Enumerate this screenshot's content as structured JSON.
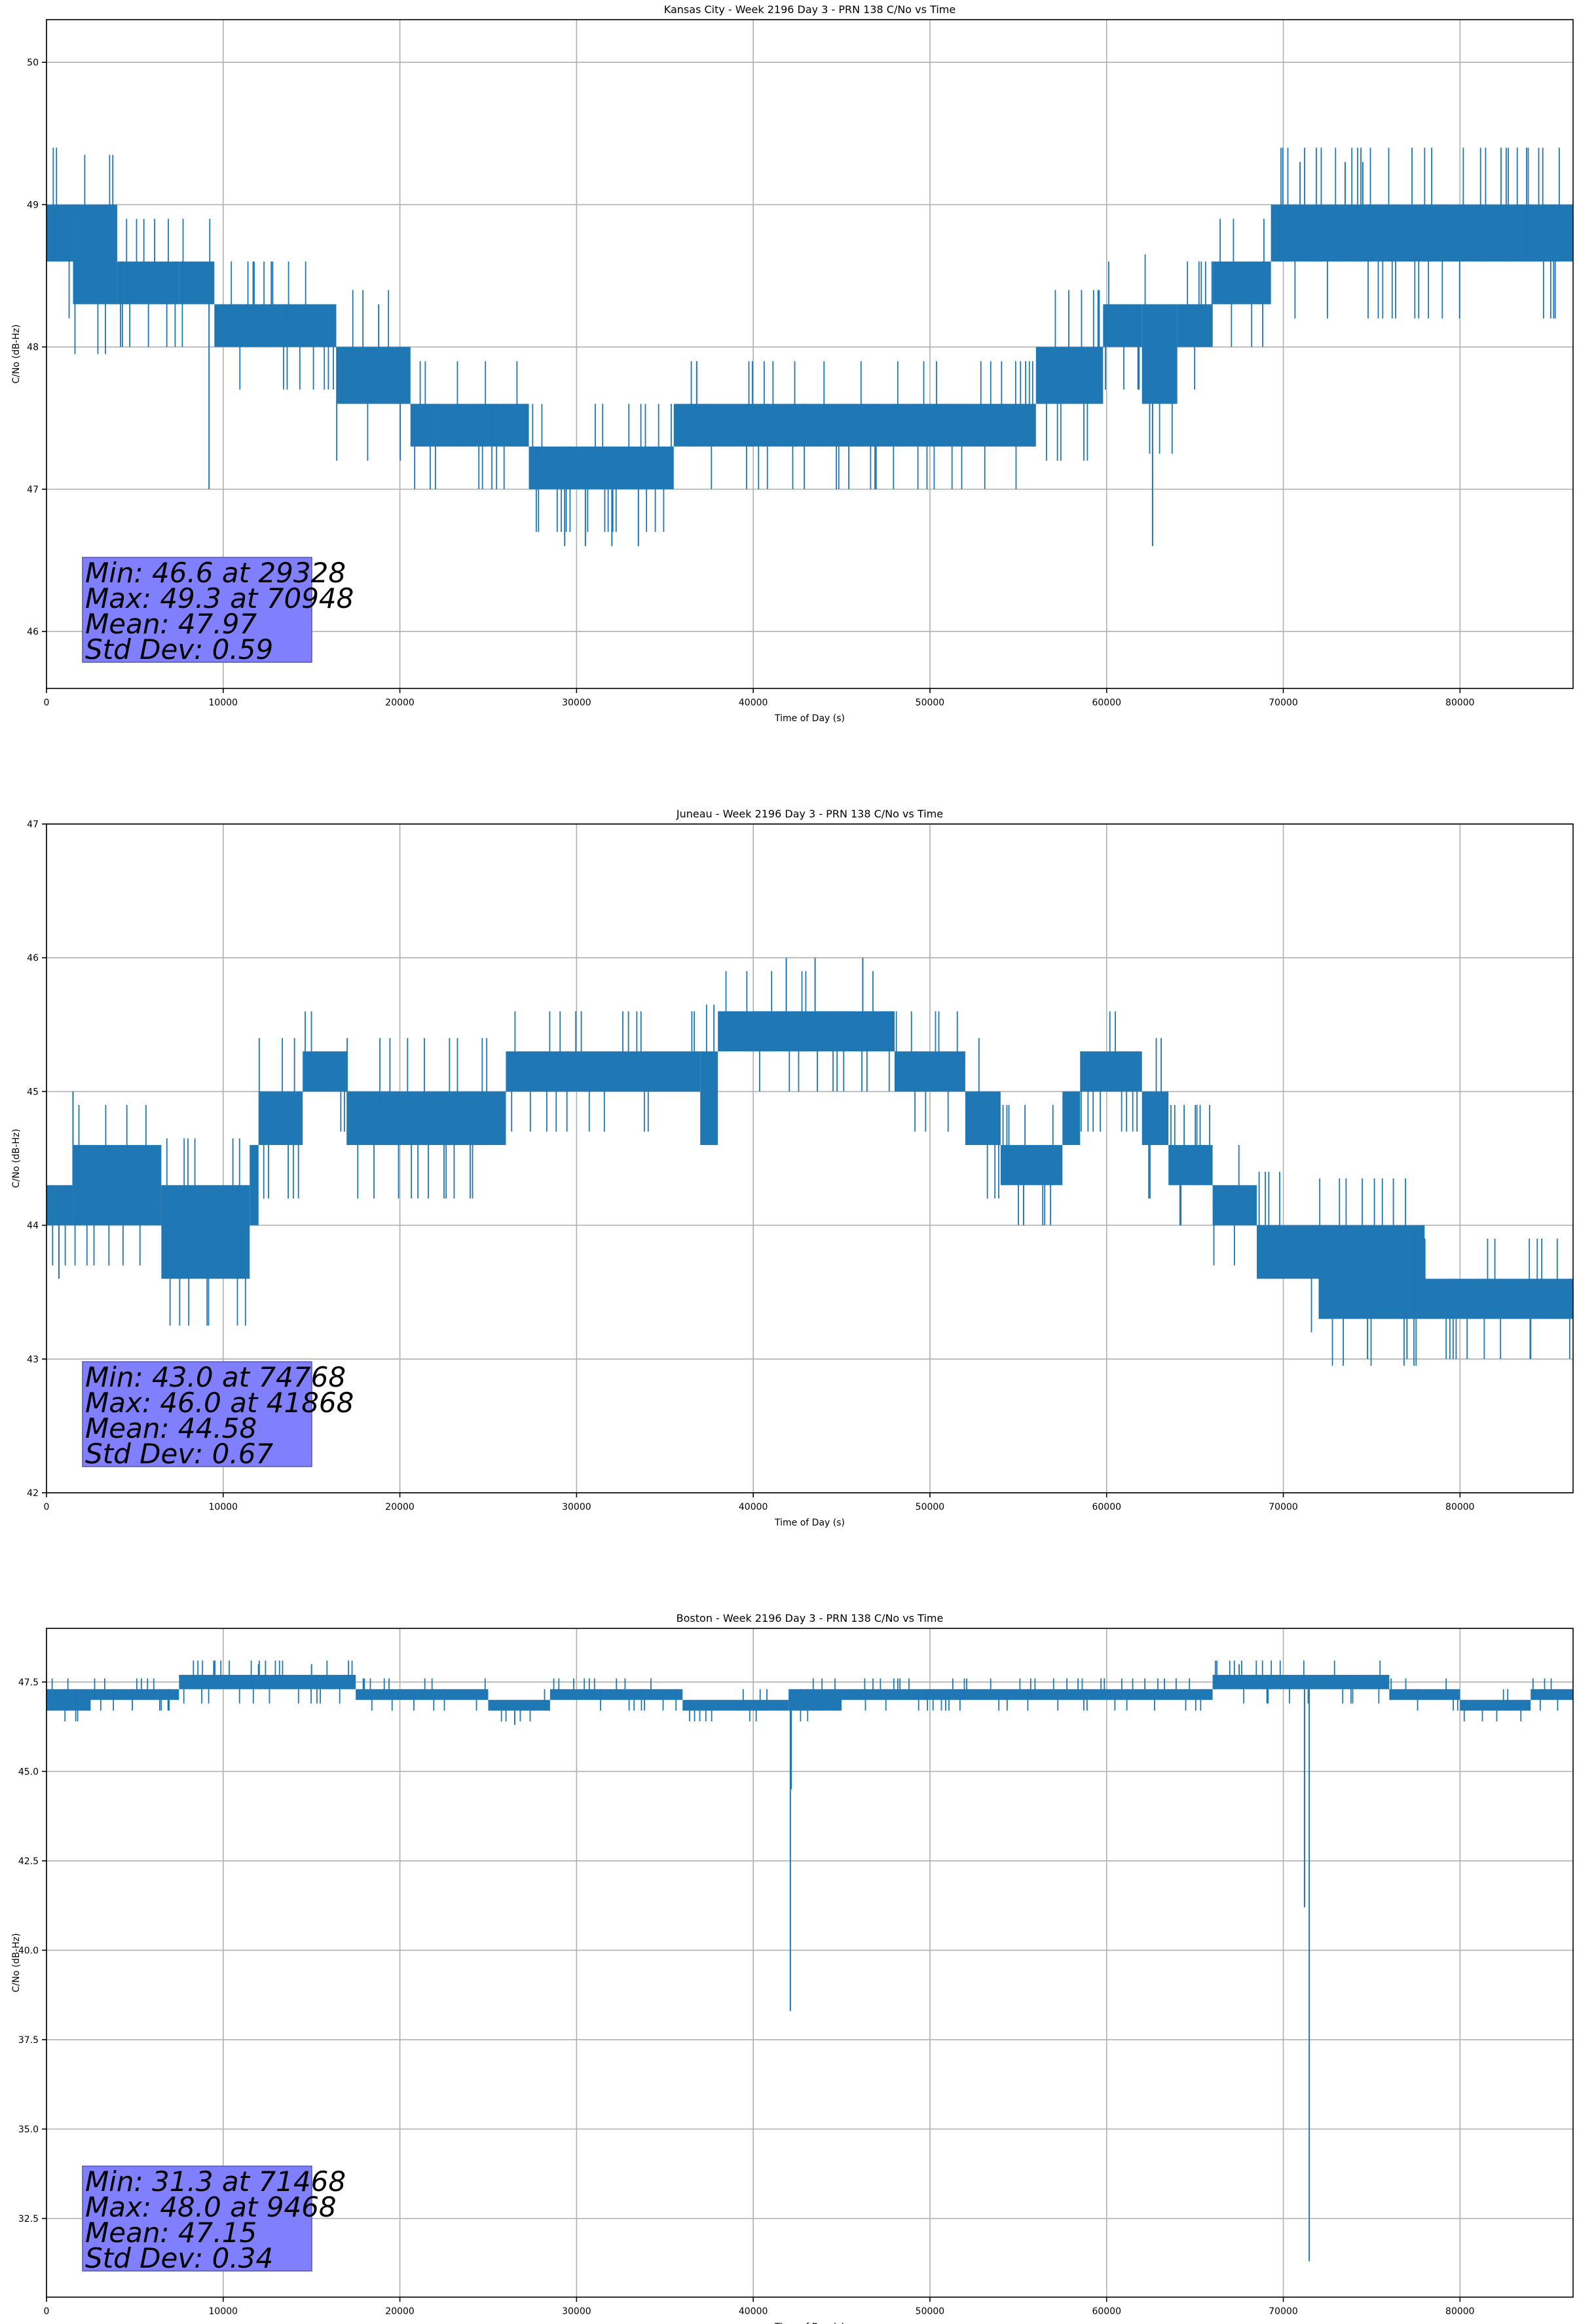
{
  "colors": {
    "line": "#1f77b4",
    "grid": "#b0b0b0",
    "statbox": "#8080ff",
    "statbox_edge": "#5555aa"
  },
  "chart_data": [
    {
      "type": "line",
      "title": "Kansas City - Week 2196 Day 3 - PRN 138 C/No vs Time",
      "xlabel": "Time of Day (s)",
      "ylabel": "C/No (dB-Hz)",
      "xlim": [
        0,
        86400
      ],
      "ylim": [
        45.6,
        50.3
      ],
      "xticks": [
        0,
        10000,
        20000,
        30000,
        40000,
        50000,
        60000,
        70000,
        80000
      ],
      "xtick_labels": [
        "0",
        "10000",
        "20000",
        "30000",
        "40000",
        "50000",
        "60000",
        "70000",
        "80000"
      ],
      "yticks": [
        46,
        47,
        48,
        49,
        50
      ],
      "ytick_labels": [
        "46",
        "47",
        "48",
        "49",
        "50"
      ],
      "grid": true,
      "series": [
        {
          "name": "C/No",
          "segments": [
            {
              "x0": 0,
              "x1": 1500,
              "lo": 48.6,
              "hi": 49.0
            },
            {
              "x0": 1500,
              "x1": 4000,
              "lo": 48.3,
              "hi": 49.0
            },
            {
              "x0": 4000,
              "x1": 7500,
              "lo": 48.3,
              "hi": 48.6
            },
            {
              "x0": 7500,
              "x1": 9500,
              "lo": 48.3,
              "hi": 48.6
            },
            {
              "x0": 9500,
              "x1": 16400,
              "lo": 48.0,
              "hi": 48.3
            },
            {
              "x0": 16400,
              "x1": 20600,
              "lo": 47.6,
              "hi": 48.0
            },
            {
              "x0": 20600,
              "x1": 27300,
              "lo": 47.3,
              "hi": 47.6
            },
            {
              "x0": 27300,
              "x1": 35500,
              "lo": 47.0,
              "hi": 47.3
            },
            {
              "x0": 35500,
              "x1": 56000,
              "lo": 47.3,
              "hi": 47.6
            },
            {
              "x0": 56000,
              "x1": 59800,
              "lo": 47.6,
              "hi": 48.0
            },
            {
              "x0": 59800,
              "x1": 62000,
              "lo": 48.0,
              "hi": 48.3
            },
            {
              "x0": 62000,
              "x1": 64000,
              "lo": 47.6,
              "hi": 48.3
            },
            {
              "x0": 64000,
              "x1": 66000,
              "lo": 48.0,
              "hi": 48.3
            },
            {
              "x0": 66000,
              "x1": 69300,
              "lo": 48.3,
              "hi": 48.6
            },
            {
              "x0": 69300,
              "x1": 86400,
              "lo": 48.6,
              "hi": 49.0
            }
          ],
          "spikes": [
            [
              9200,
              47.0
            ],
            [
              29328,
              46.6
            ],
            [
              30500,
              46.6
            ],
            [
              32000,
              46.6
            ],
            [
              33500,
              46.6
            ],
            [
              62600,
              46.6
            ],
            [
              70948,
              49.3
            ],
            [
              73500,
              49.3
            ],
            [
              74500,
              49.3
            ],
            [
              18800,
              48.3
            ],
            [
              12800,
              48.6
            ],
            [
              36800,
              47.9
            ]
          ]
        }
      ],
      "stats": [
        "Min: 46.6 at 29328",
        "Max: 49.3 at 70948",
        "Mean: 47.97",
        "Std Dev: 0.59"
      ]
    },
    {
      "type": "line",
      "title": "Juneau - Week 2196 Day 3 - PRN 138 C/No vs Time",
      "xlabel": "Time of Day (s)",
      "ylabel": "C/No (dB-Hz)",
      "xlim": [
        0,
        86400
      ],
      "ylim": [
        42,
        47
      ],
      "xticks": [
        0,
        10000,
        20000,
        30000,
        40000,
        50000,
        60000,
        70000,
        80000
      ],
      "xtick_labels": [
        "0",
        "10000",
        "20000",
        "30000",
        "40000",
        "50000",
        "60000",
        "70000",
        "80000"
      ],
      "yticks": [
        42,
        43,
        44,
        45,
        46,
        47
      ],
      "ytick_labels": [
        "42",
        "43",
        "44",
        "45",
        "46",
        "47"
      ],
      "grid": true,
      "series": [
        {
          "name": "C/No",
          "segments": [
            {
              "x0": 0,
              "x1": 1500,
              "lo": 44.0,
              "hi": 44.3
            },
            {
              "x0": 1500,
              "x1": 6500,
              "lo": 44.0,
              "hi": 44.6
            },
            {
              "x0": 6500,
              "x1": 11500,
              "lo": 43.6,
              "hi": 44.3
            },
            {
              "x0": 11500,
              "x1": 12000,
              "lo": 44.0,
              "hi": 44.6
            },
            {
              "x0": 12000,
              "x1": 14500,
              "lo": 44.6,
              "hi": 45.0
            },
            {
              "x0": 14500,
              "x1": 17000,
              "lo": 45.0,
              "hi": 45.3
            },
            {
              "x0": 17000,
              "x1": 26000,
              "lo": 44.6,
              "hi": 45.0
            },
            {
              "x0": 26000,
              "x1": 37000,
              "lo": 45.0,
              "hi": 45.3
            },
            {
              "x0": 37000,
              "x1": 38000,
              "lo": 44.6,
              "hi": 45.3
            },
            {
              "x0": 38000,
              "x1": 48000,
              "lo": 45.3,
              "hi": 45.6
            },
            {
              "x0": 48000,
              "x1": 52000,
              "lo": 45.0,
              "hi": 45.3
            },
            {
              "x0": 52000,
              "x1": 54000,
              "lo": 44.6,
              "hi": 45.0
            },
            {
              "x0": 54000,
              "x1": 57500,
              "lo": 44.3,
              "hi": 44.6
            },
            {
              "x0": 57500,
              "x1": 58500,
              "lo": 44.6,
              "hi": 45.0
            },
            {
              "x0": 58500,
              "x1": 62000,
              "lo": 45.0,
              "hi": 45.3
            },
            {
              "x0": 62000,
              "x1": 63500,
              "lo": 44.6,
              "hi": 45.0
            },
            {
              "x0": 63500,
              "x1": 66000,
              "lo": 44.3,
              "hi": 44.6
            },
            {
              "x0": 66000,
              "x1": 68500,
              "lo": 44.0,
              "hi": 44.3
            },
            {
              "x0": 68500,
              "x1": 72000,
              "lo": 43.6,
              "hi": 44.0
            },
            {
              "x0": 72000,
              "x1": 78000,
              "lo": 43.3,
              "hi": 44.0
            },
            {
              "x0": 78000,
              "x1": 86400,
              "lo": 43.3,
              "hi": 43.6
            }
          ],
          "spikes": [
            [
              1500,
              45.0
            ],
            [
              700,
              43.6
            ],
            [
              41868,
              46.0
            ],
            [
              43500,
              46.0
            ],
            [
              46200,
              46.0
            ],
            [
              74768,
              43.0
            ],
            [
              77000,
              43.0
            ],
            [
              84000,
              43.0
            ],
            [
              55300,
              44.0
            ],
            [
              64200,
              44.0
            ]
          ]
        }
      ],
      "stats": [
        "Min: 43.0 at 74768",
        "Max: 46.0 at 41868",
        "Mean: 44.58",
        "Std Dev: 0.67"
      ]
    },
    {
      "type": "line",
      "title": "Boston - Week 2196 Day 3 - PRN 138 C/No vs Time",
      "xlabel": "Time of Day (s)",
      "ylabel": "C/No (dB-Hz)",
      "xlim": [
        0,
        86400
      ],
      "ylim": [
        30.3,
        49.0
      ],
      "xticks": [
        0,
        10000,
        20000,
        30000,
        40000,
        50000,
        60000,
        70000,
        80000
      ],
      "xtick_labels": [
        "0",
        "10000",
        "20000",
        "30000",
        "40000",
        "50000",
        "60000",
        "70000",
        "80000"
      ],
      "yticks": [
        32.5,
        35.0,
        37.5,
        40.0,
        42.5,
        45.0,
        47.5
      ],
      "ytick_labels": [
        "32.5",
        "35.0",
        "37.5",
        "40.0",
        "42.5",
        "45.0",
        "47.5"
      ],
      "grid": true,
      "series": [
        {
          "name": "C/No",
          "segments": [
            {
              "x0": 0,
              "x1": 2500,
              "lo": 46.7,
              "hi": 47.3
            },
            {
              "x0": 2500,
              "x1": 7500,
              "lo": 47.0,
              "hi": 47.3
            },
            {
              "x0": 7500,
              "x1": 17500,
              "lo": 47.3,
              "hi": 47.7
            },
            {
              "x0": 17500,
              "x1": 25000,
              "lo": 47.0,
              "hi": 47.3
            },
            {
              "x0": 25000,
              "x1": 28500,
              "lo": 46.7,
              "hi": 47.0
            },
            {
              "x0": 28500,
              "x1": 36000,
              "lo": 47.0,
              "hi": 47.3
            },
            {
              "x0": 36000,
              "x1": 42000,
              "lo": 46.7,
              "hi": 47.0
            },
            {
              "x0": 42000,
              "x1": 45000,
              "lo": 46.7,
              "hi": 47.3
            },
            {
              "x0": 45000,
              "x1": 66000,
              "lo": 47.0,
              "hi": 47.3
            },
            {
              "x0": 66000,
              "x1": 76000,
              "lo": 47.3,
              "hi": 47.7
            },
            {
              "x0": 76000,
              "x1": 80000,
              "lo": 47.0,
              "hi": 47.3
            },
            {
              "x0": 80000,
              "x1": 84000,
              "lo": 46.7,
              "hi": 47.0
            },
            {
              "x0": 84000,
              "x1": 86400,
              "lo": 47.0,
              "hi": 47.3
            }
          ],
          "spikes": [
            [
              42100,
              38.3
            ],
            [
              42150,
              44.5
            ],
            [
              71200,
              41.2
            ],
            [
              71468,
              31.3
            ],
            [
              9468,
              48.0
            ],
            [
              12000,
              48.0
            ],
            [
              15000,
              48.0
            ],
            [
              67500,
              48.0
            ],
            [
              26500,
              46.3
            ]
          ]
        }
      ],
      "stats": [
        "Min: 31.3 at 71468",
        "Max: 48.0 at 9468",
        "Mean: 47.15",
        "Std Dev: 0.34"
      ]
    }
  ]
}
